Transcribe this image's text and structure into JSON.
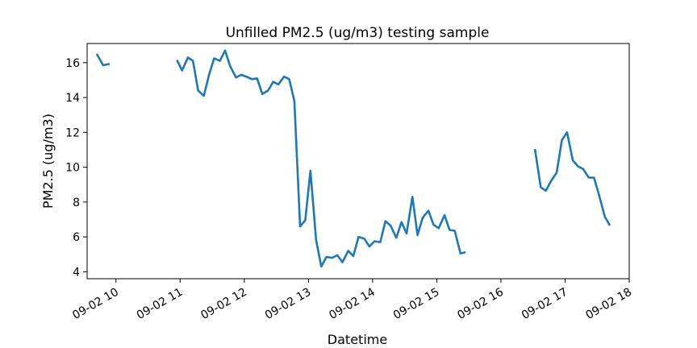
{
  "chart_data": {
    "type": "line",
    "title": "Unfilled PM2.5 (ug/m3) testing sample",
    "xlabel": "Datetime",
    "ylabel": "PM2.5 (ug/m3)",
    "grid": false,
    "line_color": "#1f77b4",
    "x_ticks": [
      "09-02 10",
      "09-02 11",
      "09-02 12",
      "09-02 13",
      "09-02 14",
      "09-02 15",
      "09-02 16",
      "09-02 17",
      "09-02 18"
    ],
    "y_ticks": [
      "4",
      "6",
      "8",
      "10",
      "12",
      "14",
      "16"
    ],
    "xlim_hours": [
      9.55,
      18.0
    ],
    "ylim": [
      3.6,
      17.1
    ],
    "series": [
      {
        "segments": [
          [
            [
              9.7,
              16.5
            ],
            [
              9.8,
              15.85
            ],
            [
              9.9,
              15.93
            ]
          ],
          [
            [
              10.95,
              16.15
            ],
            [
              11.03,
              15.55
            ],
            [
              11.12,
              16.3
            ],
            [
              11.2,
              16.1
            ],
            [
              11.28,
              14.4
            ],
            [
              11.37,
              14.1
            ],
            [
              11.45,
              15.3
            ],
            [
              11.53,
              16.25
            ],
            [
              11.62,
              16.1
            ],
            [
              11.7,
              16.7
            ],
            [
              11.78,
              15.8
            ],
            [
              11.87,
              15.15
            ],
            [
              11.95,
              15.3
            ],
            [
              12.03,
              15.2
            ],
            [
              12.12,
              15.05
            ],
            [
              12.2,
              15.1
            ],
            [
              12.28,
              14.2
            ],
            [
              12.37,
              14.4
            ],
            [
              12.45,
              14.9
            ],
            [
              12.53,
              14.75
            ],
            [
              12.62,
              15.2
            ],
            [
              12.7,
              15.05
            ],
            [
              12.78,
              13.8
            ],
            [
              12.87,
              6.6
            ],
            [
              12.95,
              6.95
            ],
            [
              13.03,
              9.8
            ],
            [
              13.12,
              5.8
            ],
            [
              13.2,
              4.3
            ],
            [
              13.28,
              4.85
            ],
            [
              13.37,
              4.8
            ],
            [
              13.45,
              4.95
            ],
            [
              13.53,
              4.55
            ],
            [
              13.62,
              5.2
            ],
            [
              13.7,
              4.9
            ],
            [
              13.78,
              6.0
            ],
            [
              13.87,
              5.9
            ],
            [
              13.95,
              5.45
            ],
            [
              14.03,
              5.75
            ],
            [
              14.12,
              5.7
            ],
            [
              14.2,
              6.9
            ],
            [
              14.28,
              6.65
            ],
            [
              14.37,
              5.95
            ],
            [
              14.45,
              6.85
            ],
            [
              14.53,
              6.2
            ],
            [
              14.62,
              8.3
            ],
            [
              14.7,
              6.1
            ],
            [
              14.78,
              7.1
            ],
            [
              14.87,
              7.5
            ],
            [
              14.95,
              6.7
            ],
            [
              15.03,
              6.5
            ],
            [
              15.12,
              7.25
            ],
            [
              15.2,
              6.4
            ],
            [
              15.28,
              6.35
            ],
            [
              15.37,
              5.05
            ],
            [
              15.45,
              5.12
            ]
          ],
          [
            [
              16.53,
              11.05
            ],
            [
              16.62,
              8.85
            ],
            [
              16.7,
              8.65
            ],
            [
              16.78,
              9.2
            ],
            [
              16.87,
              9.7
            ],
            [
              16.95,
              11.55
            ],
            [
              17.03,
              12.0
            ],
            [
              17.12,
              10.4
            ],
            [
              17.2,
              10.05
            ],
            [
              17.28,
              9.9
            ],
            [
              17.37,
              9.4
            ],
            [
              17.45,
              9.4
            ],
            [
              17.53,
              8.4
            ],
            [
              17.62,
              7.15
            ],
            [
              17.7,
              6.65
            ]
          ]
        ]
      }
    ]
  }
}
